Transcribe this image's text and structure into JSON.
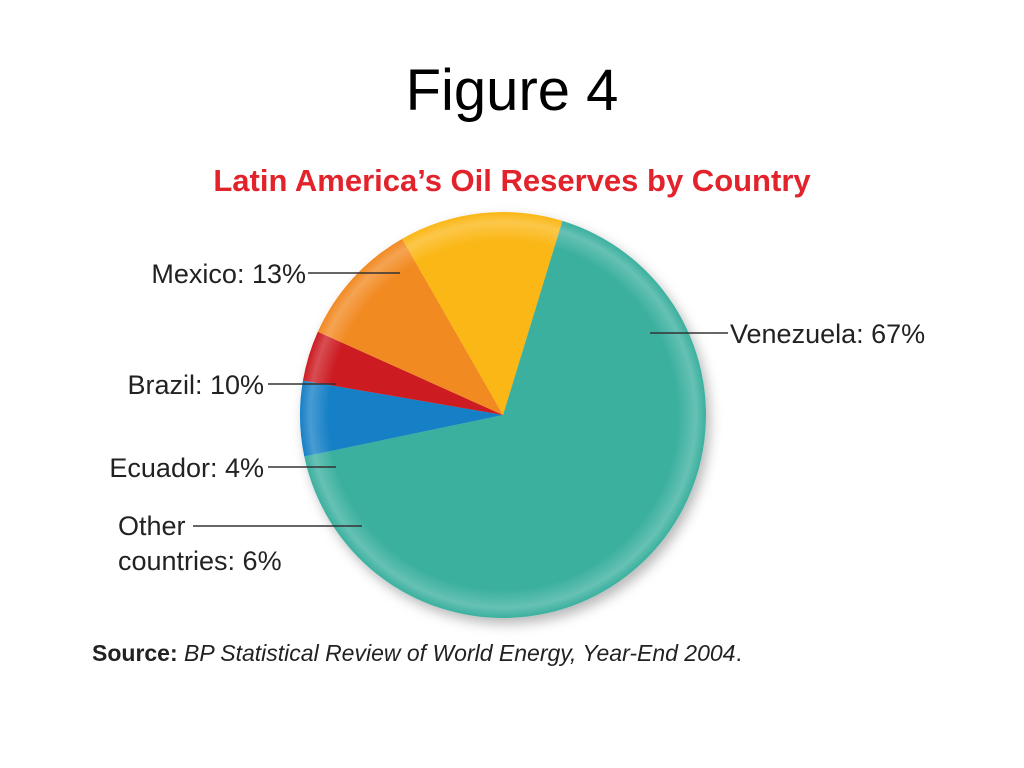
{
  "slide": {
    "heading": "Figure 4"
  },
  "source": {
    "label": "Source:",
    "text": "BP Statistical Review of World Energy, Year-End 2004",
    "end": "."
  },
  "colors": {
    "Venezuela": "#3bb09f",
    "Other countries": "#1580c6",
    "Ecuador": "#cc1f24",
    "Brazil": "#f28a22",
    "Mexico": "#fbb719"
  },
  "chart_data": {
    "type": "pie",
    "title": "Latin America’s Oil Reserves by Country",
    "start_angle_deg": 17,
    "direction": "clockwise",
    "slices": [
      {
        "name": "Venezuela",
        "value": 67,
        "label": "Venezuela: 67%"
      },
      {
        "name": "Other countries",
        "value": 6,
        "label_lines": [
          "Other",
          "countries: 6%"
        ]
      },
      {
        "name": "Ecuador",
        "value": 4,
        "label": "Ecuador: 4%"
      },
      {
        "name": "Brazil",
        "value": 10,
        "label": "Brazil: 10%"
      },
      {
        "name": "Mexico",
        "value": 13,
        "label": "Mexico: 13%"
      }
    ]
  }
}
